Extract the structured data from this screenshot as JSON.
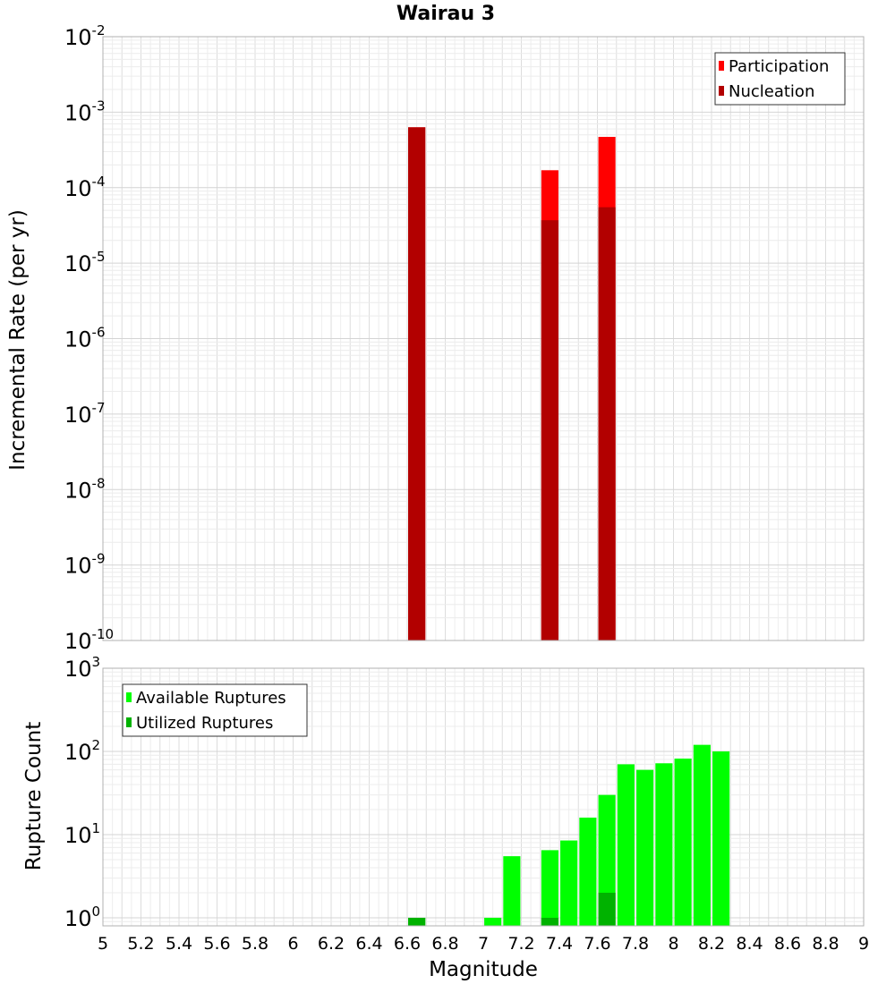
{
  "title": "Wairau 3",
  "x_axis_label": "Magnitude",
  "x_ticks": [
    "5",
    "5.2",
    "5.4",
    "5.6",
    "5.8",
    "6",
    "6.2",
    "6.4",
    "6.6",
    "6.8",
    "7",
    "7.2",
    "7.4",
    "7.6",
    "7.8",
    "8",
    "8.2",
    "8.4",
    "8.6",
    "8.8",
    "9"
  ],
  "colors": {
    "participation": "#ff0000",
    "nucleation": "#b20000",
    "available": "#00ff00",
    "utilized": "#00b200"
  },
  "chart_data": [
    {
      "type": "bar",
      "scale": "log",
      "ylabel": "Incremental Rate (per yr)",
      "xlim": [
        5,
        9
      ],
      "ylim": [
        1e-10,
        0.01
      ],
      "y_ticks": [
        {
          "base": "10",
          "exp": "-2"
        },
        {
          "base": "10",
          "exp": "-3"
        },
        {
          "base": "10",
          "exp": "-4"
        },
        {
          "base": "10",
          "exp": "-5"
        },
        {
          "base": "10",
          "exp": "-6"
        },
        {
          "base": "10",
          "exp": "-7"
        },
        {
          "base": "10",
          "exp": "-8"
        },
        {
          "base": "10",
          "exp": "-9"
        },
        {
          "base": "10",
          "exp": "-10"
        }
      ],
      "grid": true,
      "legend_position": "top-right",
      "series": [
        {
          "name": "Participation",
          "color": "#ff0000",
          "points": [
            {
              "x": 6.65,
              "y": 0.00063
            },
            {
              "x": 7.35,
              "y": 0.00017
            },
            {
              "x": 7.65,
              "y": 0.00047
            }
          ]
        },
        {
          "name": "Nucleation",
          "color": "#b20000",
          "points": [
            {
              "x": 6.65,
              "y": 0.00063
            },
            {
              "x": 7.35,
              "y": 3.7e-05
            },
            {
              "x": 7.65,
              "y": 5.5e-05
            }
          ]
        }
      ]
    },
    {
      "type": "bar",
      "scale": "log",
      "ylabel": "Rupture Count",
      "xlabel": "Magnitude",
      "xlim": [
        5,
        9
      ],
      "ylim": [
        0.8,
        1000
      ],
      "y_ticks": [
        {
          "base": "10",
          "exp": "3"
        },
        {
          "base": "10",
          "exp": "2"
        },
        {
          "base": "10",
          "exp": "1"
        },
        {
          "base": "10",
          "exp": "0"
        }
      ],
      "grid": true,
      "legend_position": "top-left",
      "series": [
        {
          "name": "Available Ruptures",
          "color": "#00ff00",
          "points": [
            {
              "x": 6.65,
              "y": 1
            },
            {
              "x": 7.05,
              "y": 1
            },
            {
              "x": 7.15,
              "y": 5.5
            },
            {
              "x": 7.35,
              "y": 6.5
            },
            {
              "x": 7.45,
              "y": 8.5
            },
            {
              "x": 7.55,
              "y": 16
            },
            {
              "x": 7.65,
              "y": 30
            },
            {
              "x": 7.75,
              "y": 70
            },
            {
              "x": 7.85,
              "y": 60
            },
            {
              "x": 7.95,
              "y": 72
            },
            {
              "x": 8.05,
              "y": 82
            },
            {
              "x": 8.15,
              "y": 120
            },
            {
              "x": 8.25,
              "y": 100
            }
          ]
        },
        {
          "name": "Utilized Ruptures",
          "color": "#00b200",
          "points": [
            {
              "x": 6.65,
              "y": 1
            },
            {
              "x": 7.35,
              "y": 1
            },
            {
              "x": 7.65,
              "y": 2
            }
          ]
        }
      ]
    }
  ]
}
